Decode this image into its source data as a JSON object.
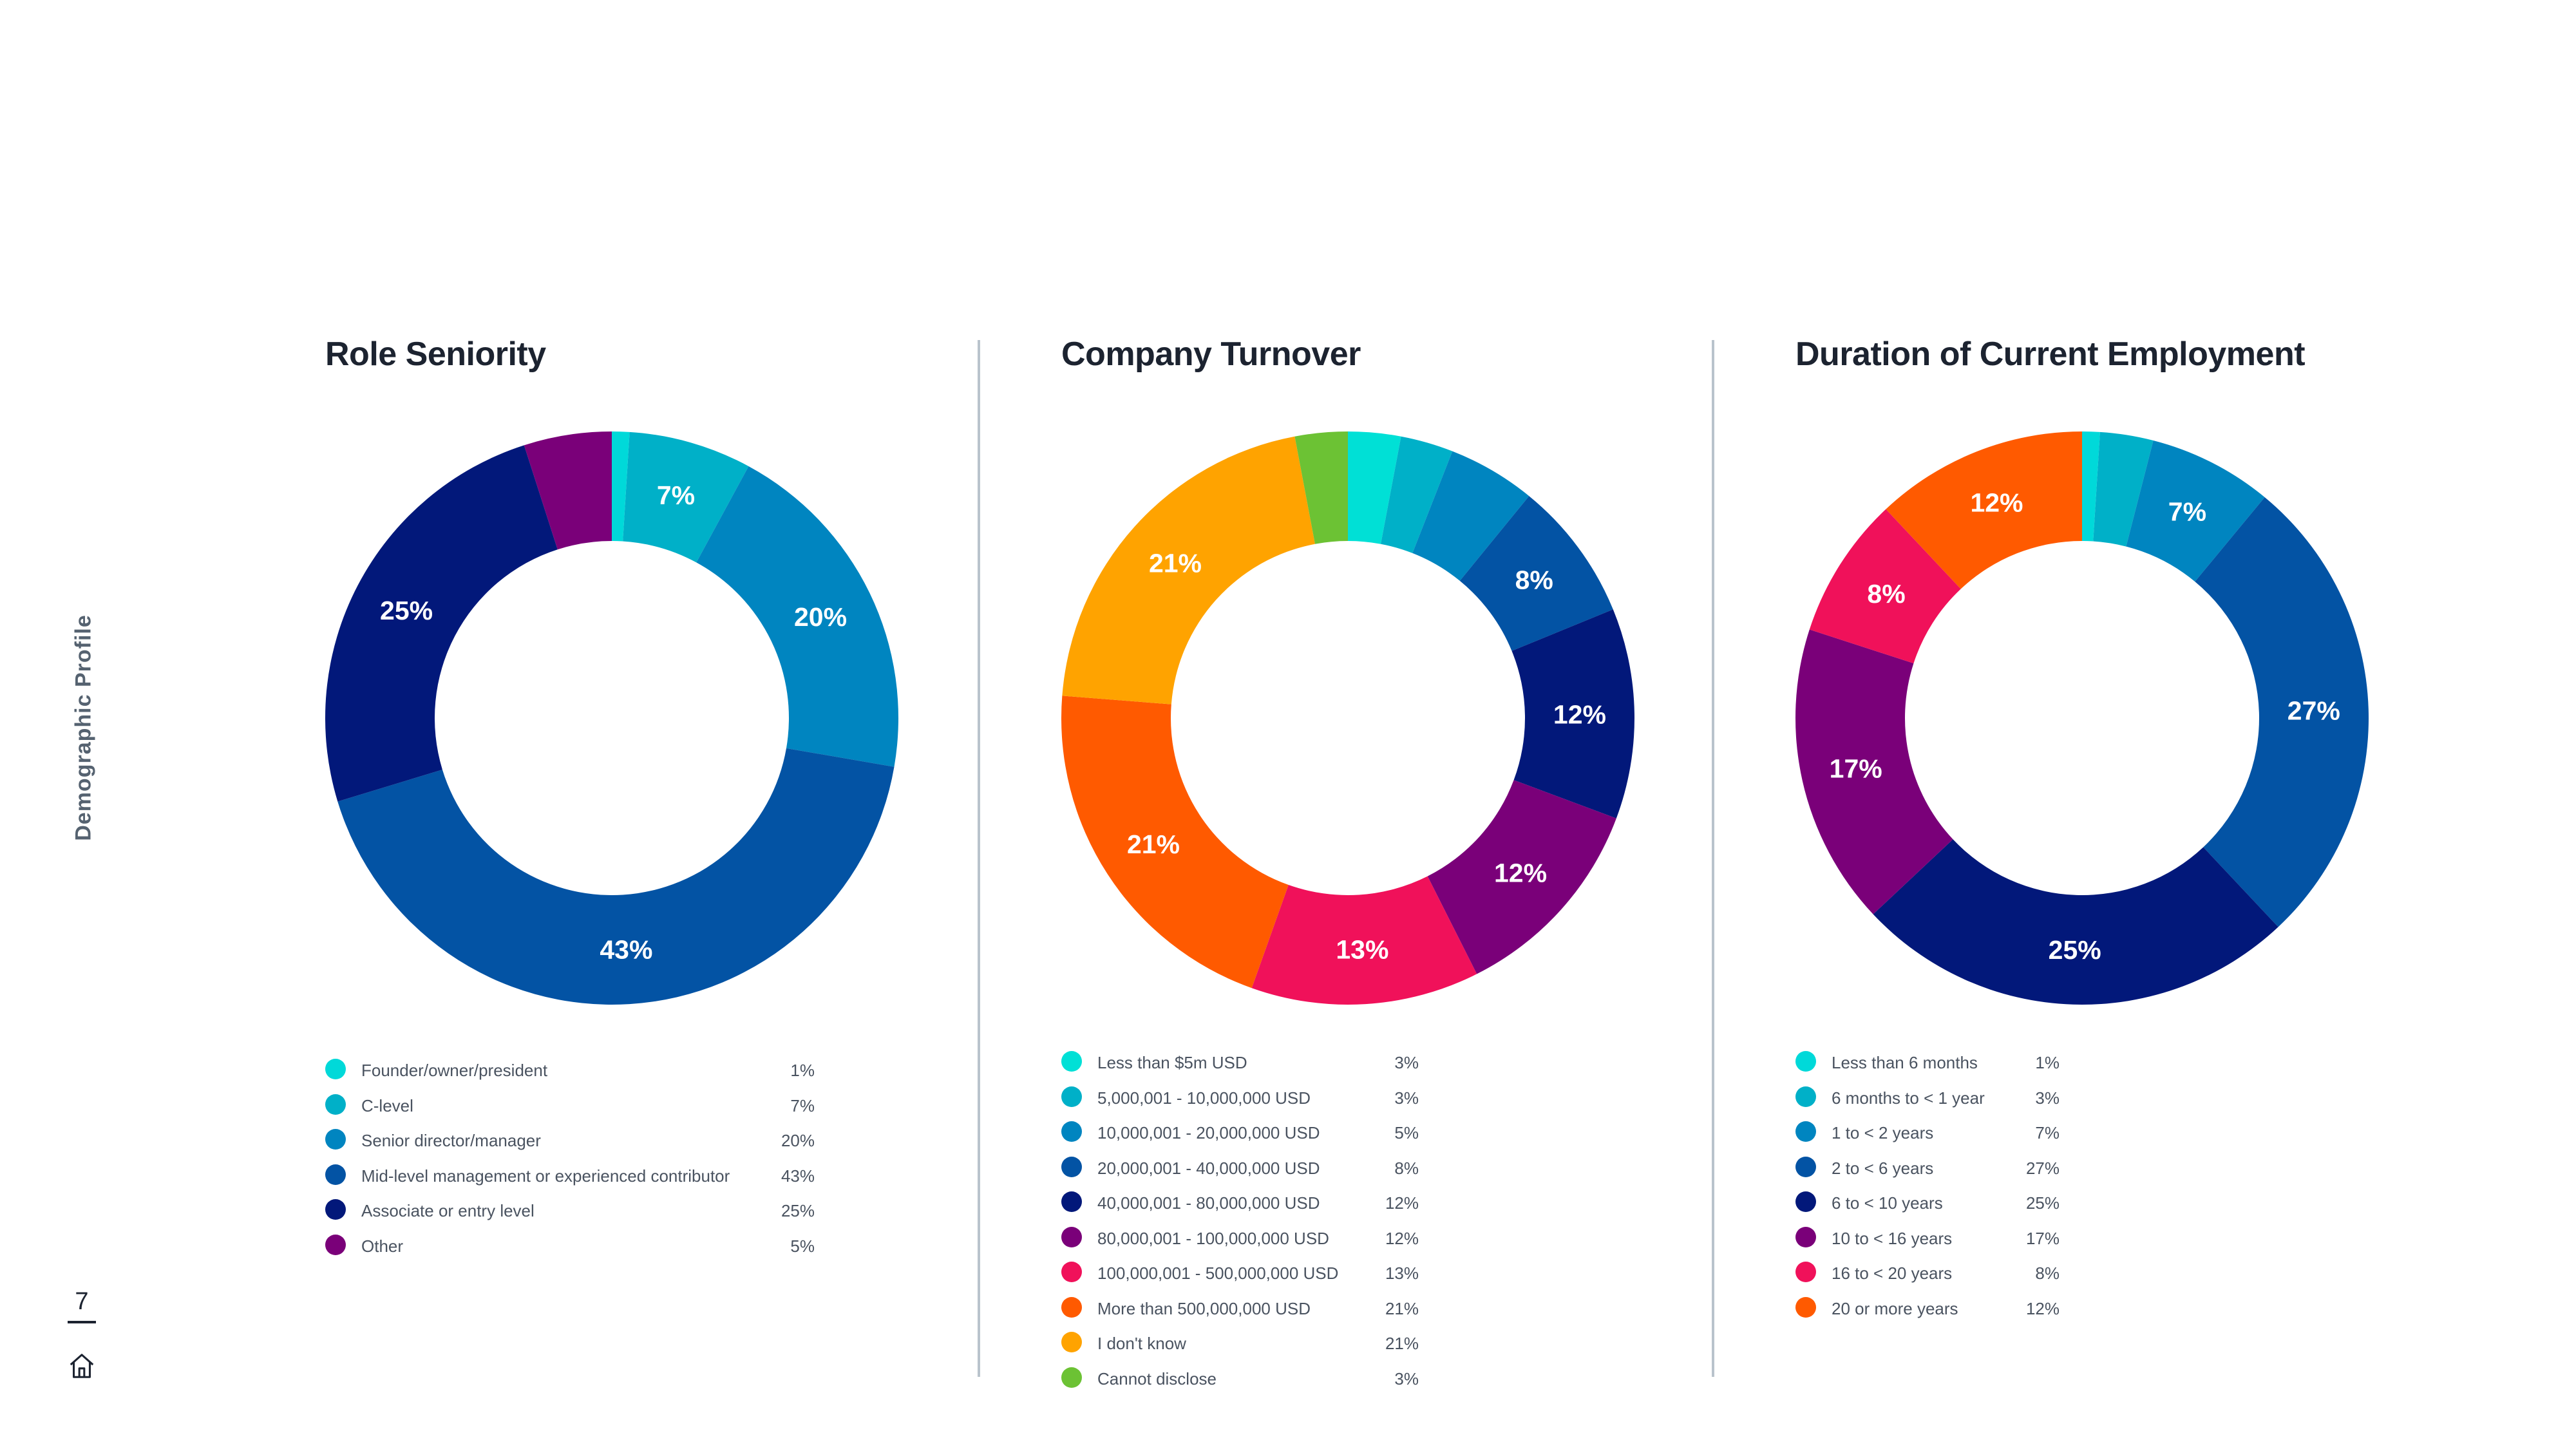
{
  "sidebar": {
    "section_label": "Demographic Profile"
  },
  "footer": {
    "page_number": "7",
    "home_icon": "home-icon"
  },
  "chart_data": [
    {
      "type": "pie",
      "donut": true,
      "title": "Role Seniority",
      "categories": [
        "Founder/owner/president",
        "C-level",
        "Senior director/manager",
        "Mid-level management or experienced contributor",
        "Associate or entry level",
        "Other"
      ],
      "values": [
        1,
        7,
        20,
        43,
        25,
        5
      ],
      "value_labels": [
        "1%",
        "7%",
        "20%",
        "43%",
        "25%",
        "5%"
      ],
      "slice_labels": [
        "",
        "7%",
        "20%",
        "43%",
        "25%",
        ""
      ],
      "colors": [
        "#00d9d9",
        "#00b0c8",
        "#0085c0",
        "#0353a4",
        "#02187a",
        "#7a0079"
      ],
      "legend_position": "bottom"
    },
    {
      "type": "pie",
      "donut": true,
      "title": "Company Turnover",
      "categories": [
        "Less than $5m USD",
        "5,000,001 - 10,000,000 USD",
        "10,000,001 - 20,000,000 USD",
        "20,000,001 - 40,000,000 USD",
        "40,000,001 - 80,000,000 USD",
        "80,000,001 - 100,000,000 USD",
        "100,000,001 - 500,000,000 USD",
        "More than 500,000,000 USD",
        "I don't know",
        "Cannot disclose"
      ],
      "values": [
        3,
        3,
        5,
        8,
        12,
        12,
        13,
        21,
        21,
        3
      ],
      "value_labels": [
        "3%",
        "3%",
        "5%",
        "8%",
        "12%",
        "12%",
        "13%",
        "21%",
        "21%",
        "3%"
      ],
      "slice_labels": [
        "",
        "",
        "",
        "8%",
        "12%",
        "12%",
        "13%",
        "21%",
        "21%",
        ""
      ],
      "colors": [
        "#00e0d6",
        "#00b0c8",
        "#0085c0",
        "#0353a4",
        "#02187a",
        "#7a0079",
        "#f0115a",
        "#ff5a00",
        "#ffa300",
        "#6cc234"
      ],
      "legend_position": "bottom"
    },
    {
      "type": "pie",
      "donut": true,
      "title": "Duration of Current Employment",
      "categories": [
        "Less than 6 months",
        "6 months to < 1 year",
        "1 to < 2 years",
        "2 to < 6 years",
        "6 to < 10 years",
        "10 to < 16 years",
        "16 to < 20 years",
        "20 or more years"
      ],
      "values": [
        1,
        3,
        7,
        27,
        25,
        17,
        8,
        12
      ],
      "value_labels": [
        "1%",
        "3%",
        "7%",
        "27%",
        "25%",
        "17%",
        "8%",
        "12%"
      ],
      "slice_labels": [
        "",
        "",
        "7%",
        "27%",
        "25%",
        "17%",
        "8%",
        "12%"
      ],
      "colors": [
        "#00d9d9",
        "#00b0c8",
        "#0085c0",
        "#0353a4",
        "#02187a",
        "#7a0079",
        "#f0115a",
        "#ff5a00"
      ],
      "legend_position": "bottom"
    }
  ]
}
